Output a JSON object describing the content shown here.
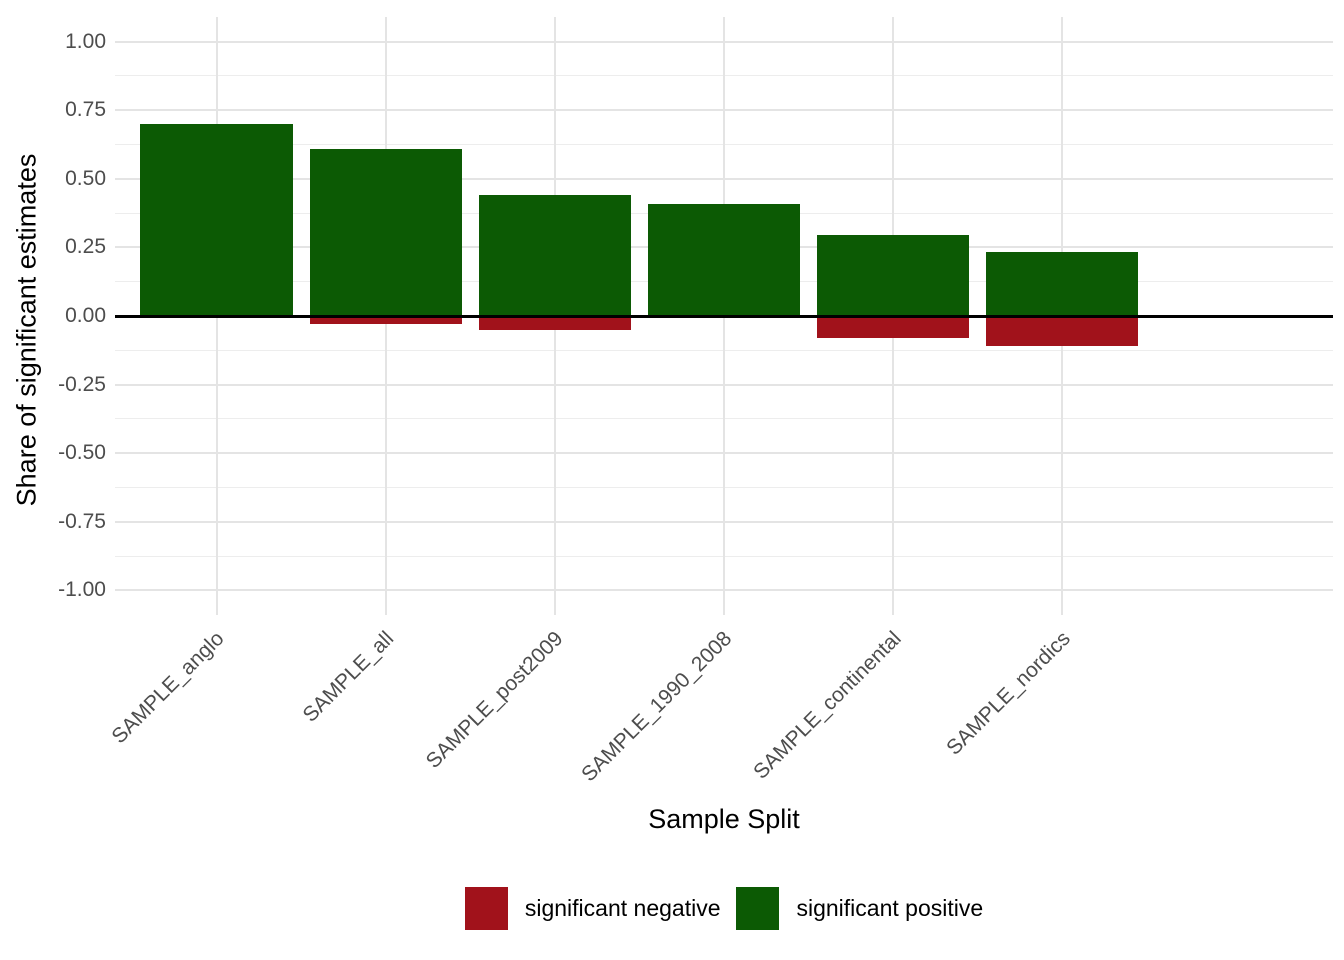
{
  "chart_data": {
    "type": "bar",
    "title": "",
    "xlabel": "Sample Split",
    "ylabel": "Share of significant estimates",
    "categories": [
      "SAMPLE_anglo",
      "SAMPLE_all",
      "SAMPLE_post2009",
      "SAMPLE_1990_2008",
      "SAMPLE_continental",
      "SAMPLE_nordics"
    ],
    "series": [
      {
        "name": "significant negative",
        "color": "#a1121b",
        "values": [
          0,
          -0.03,
          -0.05,
          0,
          -0.08,
          -0.11
        ]
      },
      {
        "name": "significant positive",
        "color": "#0c5a04",
        "values": [
          0.7,
          0.61,
          0.44,
          0.41,
          0.295,
          0.235
        ]
      }
    ],
    "ylim": [
      -1.09,
      1.09
    ],
    "yticks": [
      1.0,
      0.75,
      0.5,
      0.25,
      0.0,
      -0.25,
      -0.5,
      -0.75,
      -1.0
    ],
    "ytick_labels": [
      "1.00",
      "0.75",
      "0.50",
      "0.25",
      "0.00",
      "-0.25",
      "-0.50",
      "-0.75",
      "-1.00"
    ],
    "minor_yticks": [
      0.875,
      0.625,
      0.375,
      0.125,
      -0.125,
      -0.375,
      -0.625,
      -0.875
    ],
    "grid": true,
    "zero_line": true,
    "legend_position": "bottom",
    "bar_width": 0.9,
    "outer_padding": 0.6,
    "colors": {
      "background": "#ffffff",
      "grid_major": "#e4e4e4",
      "grid_minor": "#ededed",
      "zero_line": "#000000",
      "axis_text": "#4d4d4d",
      "axis_title": "#000000"
    }
  }
}
